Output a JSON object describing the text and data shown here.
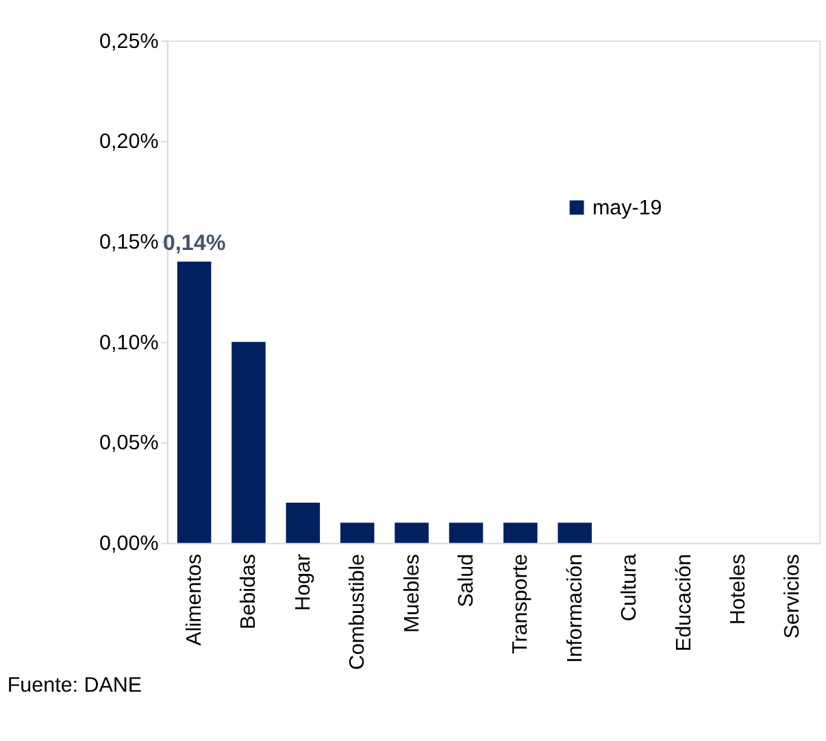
{
  "chart_data": {
    "type": "bar",
    "categories": [
      "Alimentos",
      "Bebidas",
      "Hogar",
      "Combustible",
      "Muebles",
      "Salud",
      "Transporte",
      "Información",
      "Cultura",
      "Educación",
      "Hoteles",
      "Servicios"
    ],
    "series": [
      {
        "name": "may-19",
        "color": "#002060",
        "values": [
          0.14,
          0.1,
          0.02,
          0.01,
          0.01,
          0.01,
          0.01,
          0.01,
          0,
          0,
          0,
          0
        ],
        "value_labels": [
          "0,14%",
          null,
          null,
          null,
          null,
          null,
          null,
          null,
          null,
          null,
          null,
          null
        ]
      }
    ],
    "ylim": [
      0,
      0.25
    ],
    "yticks": [
      {
        "value": 0,
        "label": "0,00%"
      },
      {
        "value": 0.05,
        "label": "0,05%"
      },
      {
        "value": 0.1,
        "label": "0,10%"
      },
      {
        "value": 0.15,
        "label": "0,15%"
      },
      {
        "value": 0.2,
        "label": "0,20%"
      },
      {
        "value": 0.25,
        "label": "0,25%"
      }
    ],
    "grid": false,
    "legend": "top right",
    "annotations": [
      "Fuente: DANE"
    ]
  }
}
